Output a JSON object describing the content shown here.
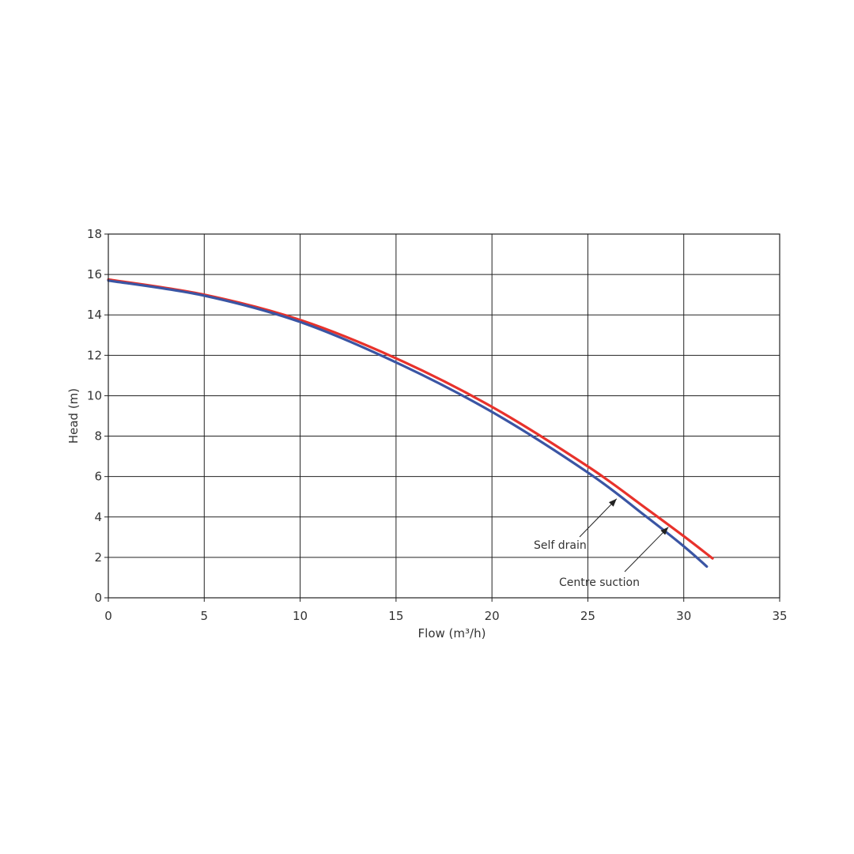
{
  "chart_data": {
    "type": "line",
    "title": "",
    "xlabel": "Flow (m³/h)",
    "ylabel": "Head (m)",
    "xlim": [
      0,
      35
    ],
    "ylim": [
      0,
      18
    ],
    "xticks": [
      "0",
      "5",
      "10",
      "15",
      "20",
      "25",
      "30",
      "35"
    ],
    "yticks": [
      "0",
      "2",
      "4",
      "6",
      "8",
      "10",
      "12",
      "14",
      "16",
      "18"
    ],
    "grid": true,
    "legend": "none",
    "series": [
      {
        "color": "#e8322b",
        "x": [
          0,
          5,
          10,
          15,
          20,
          25,
          28,
          30,
          31.5
        ],
        "y": [
          15.75,
          15.0,
          13.75,
          11.85,
          9.45,
          6.5,
          4.45,
          3.05,
          1.95
        ]
      },
      {
        "color": "#3a55a4",
        "x": [
          0,
          5,
          10,
          15,
          20,
          25,
          28,
          30,
          31.2
        ],
        "y": [
          15.7,
          14.95,
          13.65,
          11.65,
          9.2,
          6.2,
          4.05,
          2.55,
          1.55
        ]
      }
    ],
    "annotations": [
      {
        "text": "Self drain",
        "target": [
          26.5,
          4.9
        ]
      },
      {
        "text": "Centre suction",
        "target": [
          29.2,
          3.5
        ]
      }
    ]
  }
}
